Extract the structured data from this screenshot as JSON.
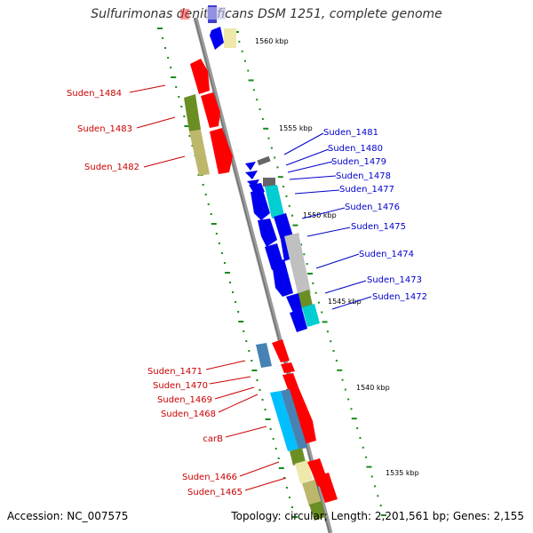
{
  "title": "Sulfurimonas denitrificans DSM 1251, complete genome",
  "accession": "Accession: NC_007575",
  "summary": "Topology: circular; Length: 2,201,561 bp; Genes: 2,155",
  "ticks": [
    "1560 kbp",
    "1555 kbp",
    "1550 kbp",
    "1545 kbp",
    "1540 kbp",
    "1535 kbp"
  ],
  "colors": {
    "forward_label": "#cc0000",
    "reverse_label": "#0000cc",
    "scale_dots": "#1a8a1a",
    "backbone": "#888888"
  },
  "forward_genes": [
    "Suden_1484",
    "Suden_1483",
    "Suden_1482",
    "Suden_1471",
    "Suden_1470",
    "Suden_1469",
    "Suden_1468",
    "carB",
    "Suden_1466",
    "Suden_1465"
  ],
  "reverse_genes": [
    "Suden_1481",
    "Suden_1480",
    "Suden_1479",
    "Suden_1478",
    "Suden_1477",
    "Suden_1476",
    "Suden_1475",
    "Suden_1474",
    "Suden_1473",
    "Suden_1472"
  ]
}
